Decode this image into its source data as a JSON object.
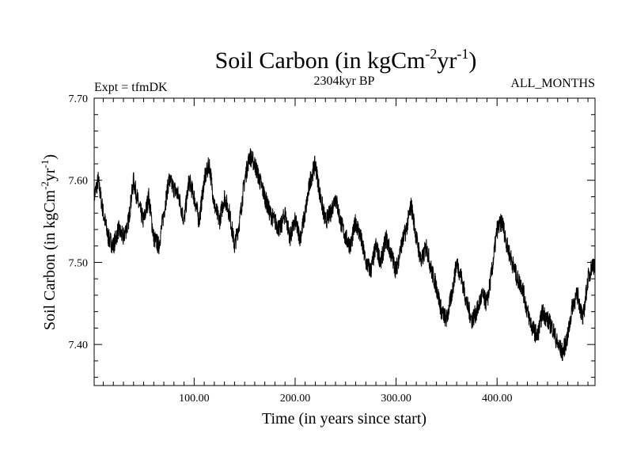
{
  "chart_data": {
    "type": "line",
    "title": {
      "main": "Soil Carbon (in kgCm",
      "sup1": "-2",
      "mid": "yr",
      "sup2": "-1",
      "end": ")"
    },
    "subtitle_left": "Expt = tfmDK",
    "subtitle_center": "2304kyr BP",
    "subtitle_right": "ALL_MONTHS",
    "xlabel": "Time (in years since start)",
    "ylabel": {
      "main": "Soil Carbon (in kgCm",
      "sup1": "-2",
      "mid": "yr",
      "sup2": "-1",
      "end": ")"
    },
    "xlim": [
      1,
      497
    ],
    "ylim": [
      7.35,
      7.7
    ],
    "xticks": [
      {
        "value": 100,
        "label": "100.00"
      },
      {
        "value": 200,
        "label": "200.00"
      },
      {
        "value": 300,
        "label": "300.00"
      },
      {
        "value": 400,
        "label": "400.00"
      }
    ],
    "yticks": [
      {
        "value": 7.4,
        "label": "7.40"
      },
      {
        "value": 7.5,
        "label": "7.50"
      },
      {
        "value": 7.6,
        "label": "7.60"
      },
      {
        "value": 7.7,
        "label": "7.70"
      }
    ],
    "series": [
      {
        "name": "Soil Carbon",
        "color": "#000000",
        "points": [
          [
            1,
            7.58
          ],
          [
            5,
            7.6
          ],
          [
            10,
            7.56
          ],
          [
            15,
            7.53
          ],
          [
            20,
            7.52
          ],
          [
            25,
            7.54
          ],
          [
            30,
            7.53
          ],
          [
            35,
            7.55
          ],
          [
            40,
            7.6
          ],
          [
            45,
            7.57
          ],
          [
            50,
            7.55
          ],
          [
            55,
            7.58
          ],
          [
            60,
            7.53
          ],
          [
            65,
            7.52
          ],
          [
            70,
            7.56
          ],
          [
            75,
            7.6
          ],
          [
            80,
            7.59
          ],
          [
            85,
            7.58
          ],
          [
            90,
            7.55
          ],
          [
            95,
            7.6
          ],
          [
            100,
            7.58
          ],
          [
            105,
            7.55
          ],
          [
            110,
            7.6
          ],
          [
            115,
            7.62
          ],
          [
            120,
            7.57
          ],
          [
            125,
            7.55
          ],
          [
            130,
            7.58
          ],
          [
            135,
            7.56
          ],
          [
            140,
            7.52
          ],
          [
            145,
            7.55
          ],
          [
            150,
            7.6
          ],
          [
            155,
            7.63
          ],
          [
            160,
            7.62
          ],
          [
            165,
            7.6
          ],
          [
            170,
            7.58
          ],
          [
            175,
            7.56
          ],
          [
            180,
            7.55
          ],
          [
            185,
            7.54
          ],
          [
            190,
            7.56
          ],
          [
            195,
            7.53
          ],
          [
            200,
            7.55
          ],
          [
            205,
            7.53
          ],
          [
            210,
            7.56
          ],
          [
            215,
            7.6
          ],
          [
            220,
            7.62
          ],
          [
            225,
            7.58
          ],
          [
            230,
            7.55
          ],
          [
            235,
            7.56
          ],
          [
            240,
            7.58
          ],
          [
            245,
            7.55
          ],
          [
            250,
            7.53
          ],
          [
            255,
            7.52
          ],
          [
            260,
            7.55
          ],
          [
            265,
            7.53
          ],
          [
            270,
            7.5
          ],
          [
            275,
            7.49
          ],
          [
            280,
            7.52
          ],
          [
            285,
            7.5
          ],
          [
            290,
            7.53
          ],
          [
            295,
            7.51
          ],
          [
            300,
            7.49
          ],
          [
            305,
            7.52
          ],
          [
            310,
            7.54
          ],
          [
            315,
            7.57
          ],
          [
            320,
            7.53
          ],
          [
            325,
            7.5
          ],
          [
            330,
            7.52
          ],
          [
            335,
            7.49
          ],
          [
            340,
            7.47
          ],
          [
            345,
            7.44
          ],
          [
            350,
            7.43
          ],
          [
            355,
            7.46
          ],
          [
            360,
            7.5
          ],
          [
            365,
            7.48
          ],
          [
            370,
            7.45
          ],
          [
            375,
            7.43
          ],
          [
            380,
            7.44
          ],
          [
            385,
            7.46
          ],
          [
            390,
            7.45
          ],
          [
            395,
            7.49
          ],
          [
            400,
            7.54
          ],
          [
            405,
            7.55
          ],
          [
            410,
            7.52
          ],
          [
            415,
            7.5
          ],
          [
            420,
            7.48
          ],
          [
            425,
            7.47
          ],
          [
            430,
            7.44
          ],
          [
            435,
            7.42
          ],
          [
            440,
            7.41
          ],
          [
            445,
            7.44
          ],
          [
            450,
            7.43
          ],
          [
            455,
            7.42
          ],
          [
            460,
            7.4
          ],
          [
            465,
            7.39
          ],
          [
            470,
            7.41
          ],
          [
            475,
            7.45
          ],
          [
            480,
            7.46
          ],
          [
            485,
            7.43
          ],
          [
            490,
            7.48
          ],
          [
            495,
            7.5
          ],
          [
            497,
            7.49
          ]
        ],
        "noise_amplitude": 0.012
      }
    ]
  }
}
